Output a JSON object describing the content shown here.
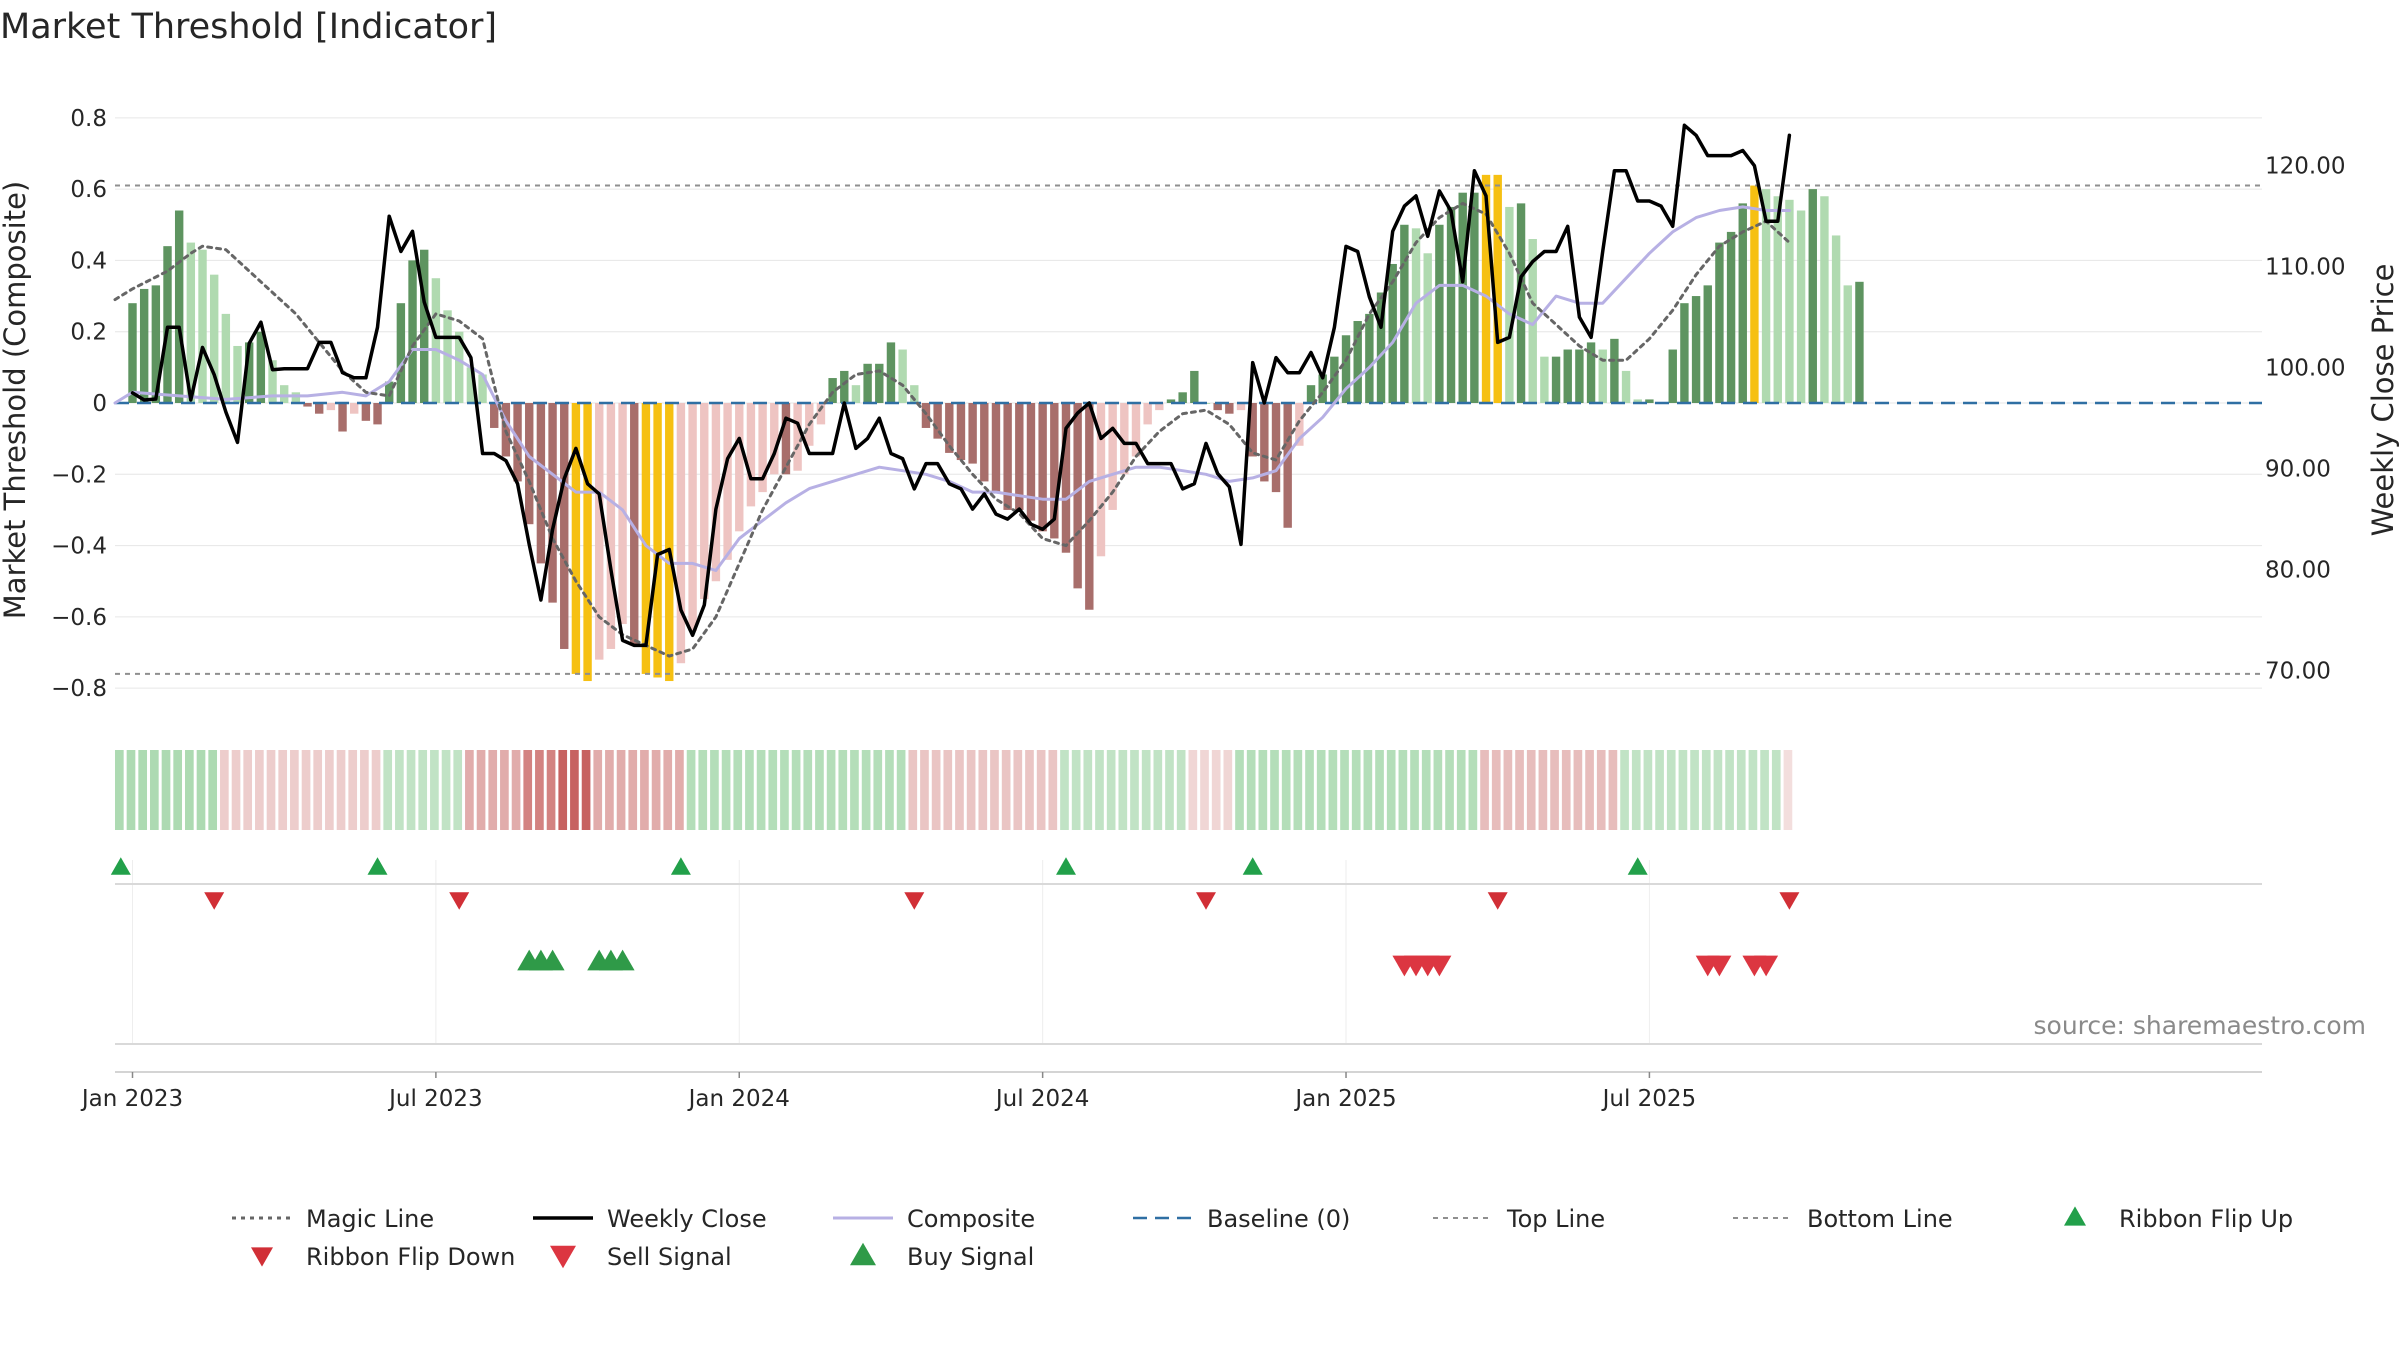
{
  "chart_data": {
    "type": "bar",
    "title": "Market Threshold [Indicator]",
    "ylabel": "Market Threshold (Composite)",
    "y2label": "Weekly Close Price",
    "ylim": [
      -0.85,
      0.85
    ],
    "y2lim": [
      66.5,
      126.5
    ],
    "yticks": [
      -0.8,
      -0.6,
      -0.4,
      -0.2,
      0,
      0.2,
      0.4,
      0.6,
      0.8
    ],
    "yticklabels": [
      "−0.8",
      "−0.6",
      "−0.4",
      "−0.2",
      "0",
      "0.2",
      "0.4",
      "0.6",
      "0.8"
    ],
    "y2ticks": [
      70,
      80,
      90,
      100,
      110,
      120
    ],
    "y2ticklabels": [
      "70.00",
      "80.00",
      "90.00",
      "100.00",
      "110.00",
      "120.00"
    ],
    "week_range": [
      -1.5,
      182.5
    ],
    "x_ticks": [
      {
        "week": 0,
        "label": "Jan 2023"
      },
      {
        "week": 26,
        "label": "Jul 2023"
      },
      {
        "week": 52,
        "label": "Jan 2024"
      },
      {
        "week": 78,
        "label": "Jul 2024"
      },
      {
        "week": 104,
        "label": "Jan 2025"
      },
      {
        "week": 130,
        "label": "Jul 2025"
      }
    ],
    "top_line": 0.61,
    "bottom_line": -0.76,
    "baseline": 0,
    "composite_bars": [
      0.28,
      0.32,
      0.33,
      0.44,
      0.54,
      0.45,
      0.43,
      0.36,
      0.25,
      0.16,
      0.17,
      0.2,
      0.12,
      0.05,
      0.03,
      -0.01,
      -0.03,
      -0.02,
      -0.08,
      -0.03,
      -0.05,
      -0.06,
      0.06,
      0.28,
      0.4,
      0.43,
      0.35,
      0.26,
      0.2,
      0.1,
      0.08,
      -0.07,
      -0.15,
      -0.22,
      -0.34,
      -0.45,
      -0.56,
      -0.69,
      -0.76,
      -0.78,
      -0.72,
      -0.69,
      -0.62,
      -0.68,
      -0.76,
      -0.77,
      -0.78,
      -0.73,
      -0.64,
      -0.55,
      -0.5,
      -0.44,
      -0.36,
      -0.29,
      -0.25,
      -0.2,
      -0.2,
      -0.19,
      -0.12,
      -0.06,
      0.07,
      0.09,
      0.05,
      0.11,
      0.11,
      0.17,
      0.15,
      0.05,
      -0.07,
      -0.1,
      -0.14,
      -0.16,
      -0.17,
      -0.22,
      -0.25,
      -0.3,
      -0.3,
      -0.33,
      -0.36,
      -0.38,
      -0.42,
      -0.52,
      -0.58,
      -0.43,
      -0.3,
      -0.2,
      -0.15,
      -0.06,
      -0.02,
      0.01,
      0.03,
      0.09,
      0.0,
      -0.02,
      -0.03,
      -0.02,
      -0.15,
      -0.22,
      -0.25,
      -0.35,
      -0.12,
      0.05,
      0.08,
      0.13,
      0.19,
      0.23,
      0.25,
      0.31,
      0.39,
      0.5,
      0.49,
      0.42,
      0.5,
      0.55,
      0.59,
      0.59,
      0.64,
      0.64,
      0.55,
      0.56,
      0.46,
      0.13,
      0.13,
      0.15,
      0.15,
      0.17,
      0.15,
      0.18,
      0.09,
      0.01,
      0.01,
      0.0,
      0.15,
      0.28,
      0.3,
      0.33,
      0.45,
      0.48,
      0.56,
      0.61,
      0.6,
      0.58,
      0.57,
      0.54,
      0.6,
      0.58,
      0.47,
      0.33,
      0.34
    ],
    "weekly_close": [
      97.5,
      96.8,
      96.9,
      104,
      104,
      96.8,
      102,
      99.3,
      95.6,
      92.6,
      102.4,
      104.5,
      99.8,
      99.9,
      99.9,
      99.9,
      102.5,
      102.5,
      99.5,
      99,
      99,
      104,
      115,
      111.5,
      113.5,
      106.5,
      103,
      103,
      103,
      101,
      91.5,
      91.5,
      90.8,
      88.5,
      82.5,
      77,
      84,
      89,
      92,
      88.5,
      87.5,
      80,
      73,
      72.5,
      72.5,
      81.5,
      82,
      76,
      73.5,
      76.5,
      86,
      91,
      93,
      89,
      89,
      91.5,
      95,
      94.5,
      91.5,
      91.5,
      91.5,
      96.5,
      92,
      93,
      95,
      91.5,
      91,
      88,
      90.5,
      90.5,
      88.5,
      88,
      86,
      87.5,
      85.5,
      85,
      86,
      84.5,
      84,
      85,
      94,
      95.5,
      96.5,
      93,
      94,
      92.5,
      92.5,
      90.5,
      90.5,
      90.5,
      88,
      88.5,
      92.5,
      89.5,
      88.2,
      82.5,
      100.5,
      96.5,
      101,
      99.5,
      99.5,
      101.5,
      99,
      104,
      112,
      111.5,
      107,
      104,
      113.5,
      116,
      117,
      113,
      117.5,
      115.5,
      108.5,
      119.5,
      117,
      102.5,
      103,
      109,
      110.5,
      111.5,
      111.5,
      114,
      105,
      103,
      111.5,
      119.5,
      119.5,
      116.5,
      116.5,
      116,
      114,
      124,
      123,
      121,
      121,
      121,
      121.5,
      120,
      114.5,
      114.5,
      123
    ],
    "magic_line_pts": [
      [
        -1.5,
        0.29
      ],
      [
        0,
        0.32
      ],
      [
        3,
        0.37
      ],
      [
        5,
        0.42
      ],
      [
        6,
        0.44
      ],
      [
        8,
        0.43
      ],
      [
        10,
        0.37
      ],
      [
        12,
        0.31
      ],
      [
        14,
        0.25
      ],
      [
        16,
        0.17
      ],
      [
        18,
        0.09
      ],
      [
        20,
        0.03
      ],
      [
        22,
        0.02
      ],
      [
        24,
        0.16
      ],
      [
        26,
        0.25
      ],
      [
        28,
        0.23
      ],
      [
        30,
        0.18
      ],
      [
        31,
        0.05
      ],
      [
        32,
        -0.08
      ],
      [
        34,
        -0.22
      ],
      [
        36,
        -0.38
      ],
      [
        38,
        -0.5
      ],
      [
        40,
        -0.6
      ],
      [
        42,
        -0.65
      ],
      [
        44,
        -0.68
      ],
      [
        46,
        -0.71
      ],
      [
        48,
        -0.69
      ],
      [
        50,
        -0.6
      ],
      [
        52,
        -0.45
      ],
      [
        54,
        -0.3
      ],
      [
        56,
        -0.18
      ],
      [
        58,
        -0.06
      ],
      [
        60,
        0.03
      ],
      [
        62,
        0.08
      ],
      [
        64,
        0.09
      ],
      [
        66,
        0.05
      ],
      [
        68,
        -0.03
      ],
      [
        70,
        -0.12
      ],
      [
        72,
        -0.2
      ],
      [
        74,
        -0.27
      ],
      [
        76,
        -0.31
      ],
      [
        78,
        -0.38
      ],
      [
        80,
        -0.4
      ],
      [
        82,
        -0.33
      ],
      [
        84,
        -0.25
      ],
      [
        86,
        -0.15
      ],
      [
        88,
        -0.08
      ],
      [
        90,
        -0.03
      ],
      [
        92,
        -0.02
      ],
      [
        94,
        -0.06
      ],
      [
        96,
        -0.14
      ],
      [
        98,
        -0.16
      ],
      [
        100,
        -0.05
      ],
      [
        102,
        0.03
      ],
      [
        104,
        0.12
      ],
      [
        106,
        0.25
      ],
      [
        108,
        0.34
      ],
      [
        110,
        0.45
      ],
      [
        112,
        0.52
      ],
      [
        114,
        0.56
      ],
      [
        116,
        0.53
      ],
      [
        118,
        0.42
      ],
      [
        120,
        0.28
      ],
      [
        122,
        0.22
      ],
      [
        124,
        0.16
      ],
      [
        126,
        0.12
      ],
      [
        128,
        0.12
      ],
      [
        130,
        0.18
      ],
      [
        132,
        0.26
      ],
      [
        134,
        0.36
      ],
      [
        136,
        0.44
      ],
      [
        138,
        0.48
      ],
      [
        140,
        0.51
      ],
      [
        142,
        0.45
      ]
    ],
    "composite_line_pts": [
      [
        -1.5,
        0.0
      ],
      [
        0,
        0.03
      ],
      [
        4,
        0.02
      ],
      [
        8,
        0.01
      ],
      [
        12,
        0.02
      ],
      [
        15,
        0.02
      ],
      [
        18,
        0.03
      ],
      [
        20,
        0.02
      ],
      [
        22,
        0.06
      ],
      [
        24,
        0.15
      ],
      [
        26,
        0.15
      ],
      [
        28,
        0.12
      ],
      [
        30,
        0.08
      ],
      [
        32,
        -0.05
      ],
      [
        34,
        -0.15
      ],
      [
        36,
        -0.2
      ],
      [
        38,
        -0.25
      ],
      [
        40,
        -0.25
      ],
      [
        42,
        -0.3
      ],
      [
        44,
        -0.4
      ],
      [
        46,
        -0.45
      ],
      [
        48,
        -0.45
      ],
      [
        50,
        -0.47
      ],
      [
        52,
        -0.38
      ],
      [
        54,
        -0.33
      ],
      [
        56,
        -0.28
      ],
      [
        58,
        -0.24
      ],
      [
        60,
        -0.22
      ],
      [
        62,
        -0.2
      ],
      [
        64,
        -0.18
      ],
      [
        66,
        -0.19
      ],
      [
        68,
        -0.2
      ],
      [
        70,
        -0.22
      ],
      [
        72,
        -0.25
      ],
      [
        74,
        -0.25
      ],
      [
        76,
        -0.26
      ],
      [
        78,
        -0.27
      ],
      [
        80,
        -0.27
      ],
      [
        82,
        -0.22
      ],
      [
        84,
        -0.2
      ],
      [
        86,
        -0.18
      ],
      [
        88,
        -0.18
      ],
      [
        90,
        -0.19
      ],
      [
        92,
        -0.2
      ],
      [
        94,
        -0.22
      ],
      [
        96,
        -0.21
      ],
      [
        98,
        -0.19
      ],
      [
        100,
        -0.1
      ],
      [
        102,
        -0.04
      ],
      [
        104,
        0.04
      ],
      [
        106,
        0.1
      ],
      [
        108,
        0.17
      ],
      [
        110,
        0.28
      ],
      [
        112,
        0.33
      ],
      [
        114,
        0.33
      ],
      [
        116,
        0.3
      ],
      [
        118,
        0.25
      ],
      [
        120,
        0.22
      ],
      [
        122,
        0.3
      ],
      [
        124,
        0.28
      ],
      [
        126,
        0.28
      ],
      [
        128,
        0.35
      ],
      [
        130,
        0.42
      ],
      [
        132,
        0.48
      ],
      [
        134,
        0.52
      ],
      [
        136,
        0.54
      ],
      [
        138,
        0.55
      ],
      [
        140,
        0.54
      ],
      [
        142,
        0.54
      ]
    ],
    "ribbon_segments": [
      {
        "start": -1.5,
        "end": 7.5,
        "tone": "green",
        "intensity": 0.6
      },
      {
        "start": 7.5,
        "end": 21.5,
        "tone": "red",
        "intensity": 0.3
      },
      {
        "start": 21.5,
        "end": 28.5,
        "tone": "green",
        "intensity": 0.45
      },
      {
        "start": 28.5,
        "end": 33.5,
        "tone": "red",
        "intensity": 0.5
      },
      {
        "start": 33.5,
        "end": 36.5,
        "tone": "red",
        "intensity": 0.75
      },
      {
        "start": 36.5,
        "end": 39.5,
        "tone": "red",
        "intensity": 0.95
      },
      {
        "start": 39.5,
        "end": 47.5,
        "tone": "red",
        "intensity": 0.5
      },
      {
        "start": 47.5,
        "end": 66.5,
        "tone": "green",
        "intensity": 0.55
      },
      {
        "start": 66.5,
        "end": 79.5,
        "tone": "red",
        "intensity": 0.35
      },
      {
        "start": 79.5,
        "end": 90.5,
        "tone": "green",
        "intensity": 0.45
      },
      {
        "start": 90.5,
        "end": 94.5,
        "tone": "red",
        "intensity": 0.25
      },
      {
        "start": 94.5,
        "end": 115.5,
        "tone": "green",
        "intensity": 0.55
      },
      {
        "start": 115.5,
        "end": 127.5,
        "tone": "red",
        "intensity": 0.4
      },
      {
        "start": 127.5,
        "end": 141.5,
        "tone": "green",
        "intensity": 0.45
      },
      {
        "start": 141.5,
        "end": 142.5,
        "tone": "red",
        "intensity": 0.2
      }
    ],
    "ribbon_flip_up_weeks": [
      -1,
      21,
      47,
      80,
      96,
      129
    ],
    "ribbon_flip_down_weeks": [
      7,
      28,
      67,
      92,
      117,
      142
    ],
    "buy_signal_weeks": [
      34,
      35,
      36,
      40,
      41,
      42
    ],
    "sell_signal_weeks": [
      109,
      110,
      111,
      112,
      135,
      136,
      139,
      140
    ],
    "legend_position": "bottom",
    "legend": [
      {
        "label": "Magic Line",
        "key": "magic"
      },
      {
        "label": "Weekly Close",
        "key": "close"
      },
      {
        "label": "Composite",
        "key": "composite"
      },
      {
        "label": "Baseline (0)",
        "key": "baseline"
      },
      {
        "label": "Top Line",
        "key": "top"
      },
      {
        "label": "Bottom Line",
        "key": "bottom"
      },
      {
        "label": "Ribbon Flip Up",
        "key": "flipup"
      },
      {
        "label": "Ribbon Flip Down",
        "key": "flipdown"
      },
      {
        "label": "Sell Signal",
        "key": "sell"
      },
      {
        "label": "Buy Signal",
        "key": "buy"
      }
    ],
    "source": "source: sharemaestro.com"
  },
  "colors": {
    "bar_pos_dark": "#5e9460",
    "bar_pos_light": "#b0dab0",
    "bar_neg_dark": "#a86e6b",
    "bar_neg_light": "#eec4c2",
    "bar_extreme": "#f6c012",
    "close_line": "#000000",
    "magic_line": "#666666",
    "composite_line": "#b7b0e4",
    "baseline": "#2f6fa3",
    "top_bottom_line": "#8f8f8f",
    "ribbon_green": "#76c27f",
    "ribbon_red": "#c45a57",
    "flip_up": "#22a04a",
    "flip_down": "#d12f36",
    "sell": "#dc3641",
    "buy": "#2f9a48",
    "grid": "#e6e6e6",
    "text": "#262626"
  }
}
